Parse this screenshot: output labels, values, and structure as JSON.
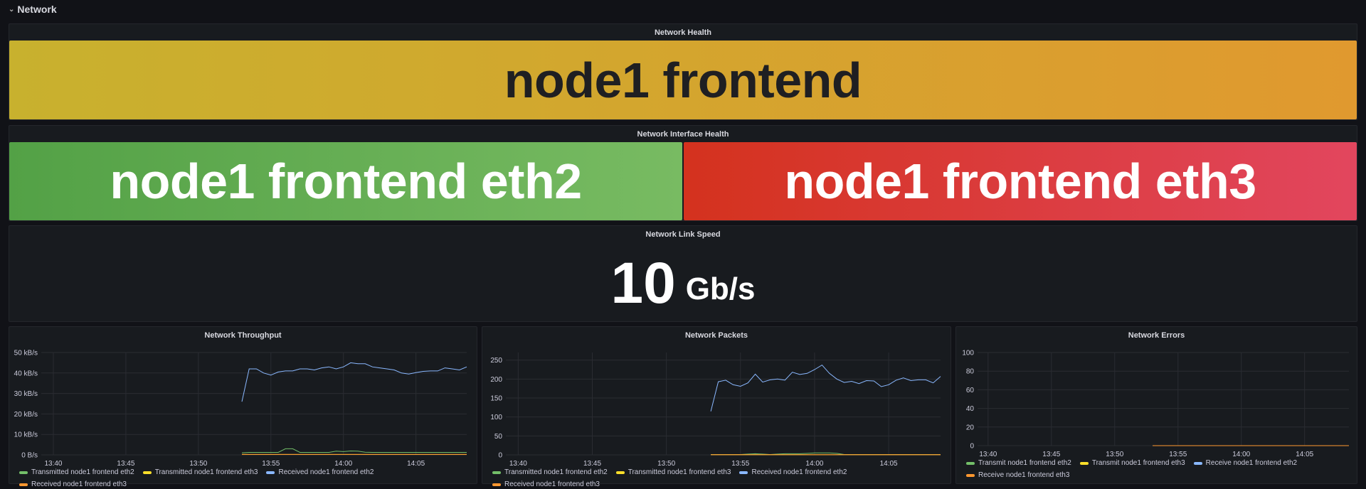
{
  "row": {
    "title": "Network",
    "collapsed": false
  },
  "health": {
    "title": "Network Health",
    "value": "node1 frontend",
    "color": "#d4a72f"
  },
  "interface_health": {
    "title": "Network Interface Health",
    "items": [
      {
        "value": "node1 frontend eth2",
        "color": "#73bf69",
        "status": "ok"
      },
      {
        "value": "node1 frontend eth3",
        "color": "#e02f44",
        "status": "critical"
      }
    ]
  },
  "link_speed": {
    "title": "Network Link Speed",
    "value": "10",
    "unit": "Gb/s"
  },
  "chart_data": [
    {
      "type": "line",
      "title": "Network Throughput",
      "ylabel": "",
      "ylim": [
        0,
        50
      ],
      "yticks": [
        "0 B/s",
        "10 kB/s",
        "20 kB/s",
        "30 kB/s",
        "40 kB/s",
        "50 kB/s"
      ],
      "ytick_values": [
        0,
        10,
        20,
        30,
        40,
        50
      ],
      "yunit": "kB/s",
      "xlim": [
        "13:39:10",
        "14:08:30"
      ],
      "xticks": [
        "13:40",
        "13:45",
        "13:50",
        "13:55",
        "14:00",
        "14:05"
      ],
      "grid": true,
      "legend": "bottom",
      "x": [
        "13:53:00",
        "13:53:30",
        "13:54:00",
        "13:54:30",
        "13:55:00",
        "13:55:30",
        "13:56:00",
        "13:56:30",
        "13:57:00",
        "13:57:30",
        "13:58:00",
        "13:58:30",
        "13:59:00",
        "13:59:30",
        "14:00:00",
        "14:00:30",
        "14:01:00",
        "14:01:30",
        "14:02:00",
        "14:02:30",
        "14:03:00",
        "14:03:30",
        "14:04:00",
        "14:04:30",
        "14:05:00",
        "14:05:30",
        "14:06:00",
        "14:06:30",
        "14:07:00",
        "14:07:30",
        "14:08:00",
        "14:08:30"
      ],
      "series": [
        {
          "name": "Transmitted node1 frontend eth2",
          "color": "#73bf69",
          "values": [
            1,
            1.2,
            1.2,
            1.2,
            1.2,
            1.2,
            3,
            3,
            1.2,
            1.2,
            1.2,
            1.2,
            1.2,
            1.8,
            1.6,
            1.9,
            1.8,
            1.3,
            1.2,
            1.2,
            1.2,
            1.2,
            1.2,
            1.2,
            1.2,
            1.2,
            1.2,
            1.2,
            1.2,
            1.2,
            1.2,
            1.2
          ]
        },
        {
          "name": "Transmitted node1 frontend eth3",
          "color": "#fade2a",
          "values": [
            0.2,
            0.2,
            0.2,
            0.2,
            0.2,
            0.2,
            0.2,
            0.2,
            0.2,
            0.2,
            0.2,
            0.2,
            0.2,
            0.2,
            0.2,
            0.2,
            0.2,
            0.2,
            0.2,
            0.2,
            0.2,
            0.2,
            0.2,
            0.2,
            0.2,
            0.2,
            0.2,
            0.2,
            0.2,
            0.2,
            0.2,
            0.2
          ]
        },
        {
          "name": "Received node1 frontend eth2",
          "color": "#8ab8ff",
          "values": [
            26,
            42,
            42,
            40,
            39,
            40.5,
            41,
            41,
            42,
            42,
            41.5,
            42.5,
            43,
            42,
            43,
            45,
            44.5,
            44.5,
            43,
            42.5,
            42,
            41.5,
            40,
            39.5,
            40.2,
            40.8,
            41,
            41,
            42.5,
            42,
            41.5,
            43
          ]
        },
        {
          "name": "Received node1 frontend eth3",
          "color": "#ff9830",
          "values": [
            0.2,
            0.2,
            0.2,
            0.2,
            0.2,
            0.2,
            0.2,
            0.2,
            0.2,
            0.2,
            0.2,
            0.2,
            0.2,
            0.2,
            0.2,
            0.2,
            0.2,
            0.2,
            0.2,
            0.2,
            0.2,
            0.2,
            0.2,
            0.2,
            0.2,
            0.2,
            0.2,
            0.2,
            0.2,
            0.2,
            0.2,
            0.2
          ]
        }
      ]
    },
    {
      "type": "line",
      "title": "Network Packets",
      "ylabel": "",
      "ylim": [
        0,
        270
      ],
      "yticks": [
        "0",
        "50",
        "100",
        "150",
        "200",
        "250"
      ],
      "ytick_values": [
        0,
        50,
        100,
        150,
        200,
        250
      ],
      "xlim": [
        "13:39:10",
        "14:08:30"
      ],
      "xticks": [
        "13:40",
        "13:45",
        "13:50",
        "13:55",
        "14:00",
        "14:05"
      ],
      "grid": true,
      "legend": "bottom",
      "x": [
        "13:53:00",
        "13:53:30",
        "13:54:00",
        "13:54:30",
        "13:55:00",
        "13:55:30",
        "13:56:00",
        "13:56:30",
        "13:57:00",
        "13:57:30",
        "13:58:00",
        "13:58:30",
        "13:59:00",
        "13:59:30",
        "14:00:00",
        "14:00:30",
        "14:01:00",
        "14:01:30",
        "14:02:00",
        "14:02:30",
        "14:03:00",
        "14:03:30",
        "14:04:00",
        "14:04:30",
        "14:05:00",
        "14:05:30",
        "14:06:00",
        "14:06:30",
        "14:07:00",
        "14:07:30",
        "14:08:00",
        "14:08:30"
      ],
      "series": [
        {
          "name": "Transmitted node1 frontend eth2",
          "color": "#73bf69",
          "values": [
            1,
            1,
            1,
            1,
            1,
            2,
            3,
            2,
            1,
            2,
            3,
            3,
            3,
            4,
            5,
            5,
            5,
            4,
            1,
            1,
            1,
            1,
            1,
            1,
            1,
            1,
            1,
            1,
            1,
            1,
            1,
            1
          ]
        },
        {
          "name": "Transmitted node1 frontend eth3",
          "color": "#fade2a",
          "values": [
            0.5,
            0.5,
            0.5,
            0.5,
            0.5,
            0.5,
            0.5,
            0.5,
            0.5,
            0.5,
            0.5,
            0.5,
            0.5,
            0.5,
            0.5,
            0.5,
            0.5,
            0.5,
            0.5,
            0.5,
            0.5,
            0.5,
            0.5,
            0.5,
            0.5,
            0.5,
            0.5,
            0.5,
            0.5,
            0.5,
            0.5,
            0.5
          ]
        },
        {
          "name": "Received node1 frontend eth2",
          "color": "#8ab8ff",
          "values": [
            115,
            193,
            197,
            185,
            181,
            190,
            213,
            192,
            198,
            200,
            197,
            218,
            212,
            215,
            225,
            237,
            215,
            200,
            191,
            194,
            188,
            196,
            195,
            180,
            185,
            197,
            203,
            196,
            198,
            198,
            190,
            207
          ]
        },
        {
          "name": "Received node1 frontend eth3",
          "color": "#ff9830",
          "values": [
            0.5,
            0.5,
            0.5,
            0.5,
            0.5,
            0.5,
            0.5,
            0.5,
            0.5,
            0.5,
            0.5,
            0.5,
            0.5,
            0.5,
            0.5,
            0.5,
            0.5,
            0.5,
            0.5,
            0.5,
            0.5,
            0.5,
            0.5,
            0.5,
            0.5,
            0.5,
            0.5,
            0.5,
            0.5,
            0.5,
            0.5,
            0.5
          ]
        }
      ]
    },
    {
      "type": "line",
      "title": "Network Errors",
      "ylabel": "",
      "ylim": [
        0,
        100
      ],
      "yticks": [
        "0",
        "20",
        "40",
        "60",
        "80",
        "100"
      ],
      "ytick_values": [
        0,
        20,
        40,
        60,
        80,
        100
      ],
      "xlim": [
        "13:39:10",
        "14:08:30"
      ],
      "xticks": [
        "13:40",
        "13:45",
        "13:50",
        "13:55",
        "14:00",
        "14:05"
      ],
      "grid": true,
      "legend": "bottom",
      "x": [
        "13:53:00",
        "14:08:30"
      ],
      "series": [
        {
          "name": "Transmit node1 frontend eth2",
          "color": "#73bf69",
          "values": [
            0,
            0
          ]
        },
        {
          "name": "Transmit node1 frontend eth3",
          "color": "#fade2a",
          "values": [
            0,
            0
          ]
        },
        {
          "name": "Receive node1 frontend eth2",
          "color": "#8ab8ff",
          "values": [
            0,
            0
          ]
        },
        {
          "name": "Receive node1 frontend eth3",
          "color": "#ff9830",
          "values": [
            0,
            0
          ]
        }
      ]
    }
  ]
}
